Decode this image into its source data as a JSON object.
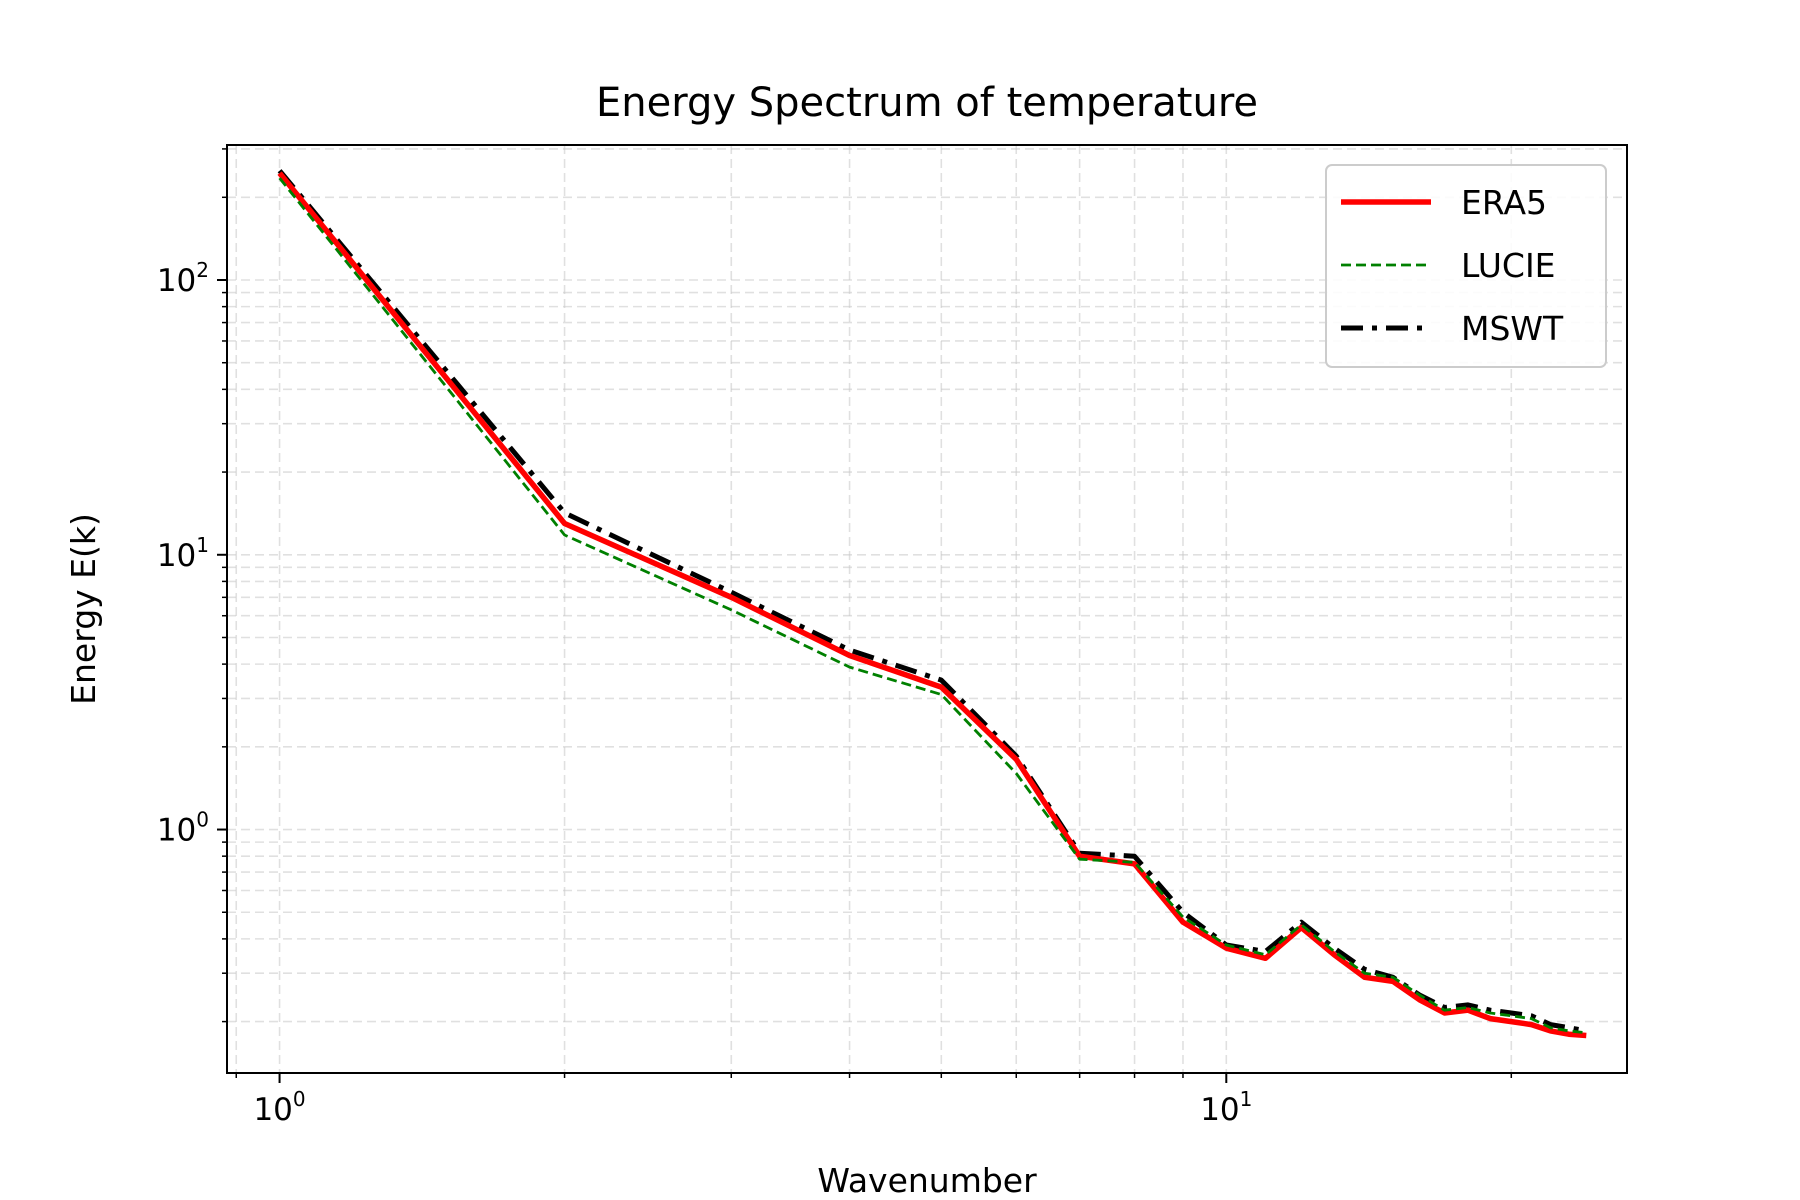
{
  "chart_data": {
    "type": "line",
    "title": "Energy Spectrum of temperature",
    "xlabel": "Wavenumber",
    "ylabel": "Energy E(k)",
    "xscale": "log",
    "yscale": "log",
    "xlim": [
      0.88,
      26.5
    ],
    "ylim": [
      0.13,
      310
    ],
    "grid": true,
    "legend_position": "top-right",
    "x_ticks": [
      {
        "value": 1,
        "base": "10",
        "exp": "0"
      },
      {
        "value": 10,
        "base": "10",
        "exp": "1"
      }
    ],
    "y_ticks": [
      {
        "value": 1,
        "base": "10",
        "exp": "0"
      },
      {
        "value": 10,
        "base": "10",
        "exp": "1"
      },
      {
        "value": 100,
        "base": "10",
        "exp": "2"
      }
    ],
    "x": [
      1,
      2,
      3,
      4,
      5,
      6,
      7,
      8,
      9,
      10,
      11,
      12,
      13,
      14,
      15,
      16,
      17,
      18,
      19,
      20,
      21,
      22,
      23,
      24
    ],
    "series": [
      {
        "name": "ERA5",
        "color": "#ff0000",
        "style": "solid",
        "values": [
          245,
          13.0,
          7.0,
          4.3,
          3.3,
          1.8,
          0.8,
          0.75,
          0.46,
          0.37,
          0.34,
          0.44,
          0.35,
          0.29,
          0.28,
          0.24,
          0.215,
          0.22,
          0.205,
          0.2,
          0.195,
          0.185,
          0.18,
          0.178
        ]
      },
      {
        "name": "LUCIE",
        "color": "#008000",
        "style": "dashed",
        "values": [
          235,
          11.8,
          6.3,
          3.9,
          3.1,
          1.6,
          0.78,
          0.76,
          0.48,
          0.38,
          0.35,
          0.45,
          0.36,
          0.3,
          0.29,
          0.25,
          0.22,
          0.225,
          0.215,
          0.21,
          0.205,
          0.19,
          0.185,
          0.182
        ]
      },
      {
        "name": "MSWT",
        "color": "#000000",
        "style": "dashdot",
        "values": [
          250,
          14.2,
          7.3,
          4.5,
          3.5,
          1.85,
          0.82,
          0.8,
          0.5,
          0.38,
          0.36,
          0.46,
          0.37,
          0.31,
          0.29,
          0.25,
          0.225,
          0.23,
          0.22,
          0.215,
          0.21,
          0.195,
          0.19,
          0.185
        ]
      }
    ]
  }
}
